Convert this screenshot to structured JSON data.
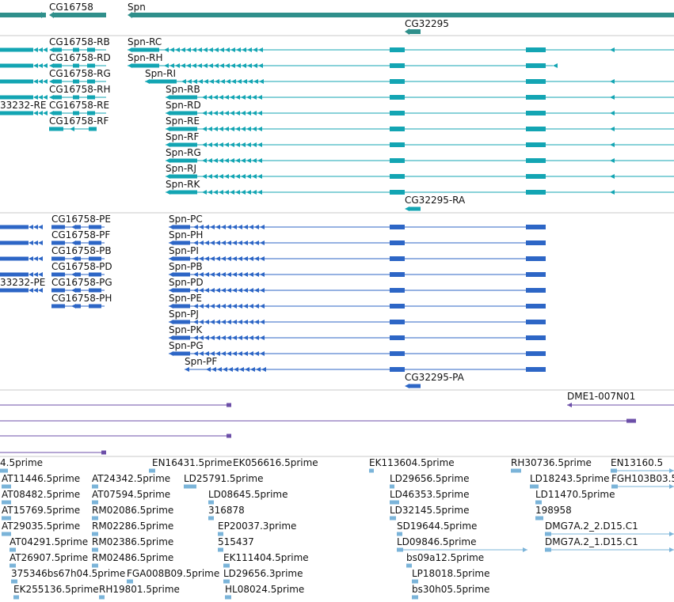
{
  "colors": {
    "gene": "#2f8f8b",
    "transcript": "#13a5b3",
    "protein": "#2d66c6",
    "cdna": "#6c4fa8",
    "est": "#7bb4d9"
  },
  "gene_track": {
    "labels": [
      "CG16758",
      "Spn",
      "CG32295"
    ]
  },
  "transcript_track": {
    "labels": [
      "CG16758-RB",
      "CG16758-RD",
      "CG16758-RG",
      "CG16758-RH",
      "CG16758-RE",
      "CG16758-RF",
      "Spn-RC",
      "Spn-RH",
      "Spn-RI",
      "Spn-RB",
      "Spn-RD",
      "Spn-RE",
      "Spn-RF",
      "Spn-RG",
      "Spn-RJ",
      "Spn-RK",
      "CG32295-RA",
      "33232-RE"
    ]
  },
  "protein_track": {
    "labels": [
      "CG16758-PE",
      "CG16758-PF",
      "CG16758-PB",
      "CG16758-PD",
      "CG16758-PG",
      "CG16758-PH",
      "Spn-PC",
      "Spn-PH",
      "Spn-PI",
      "Spn-PB",
      "Spn-PD",
      "Spn-PE",
      "Spn-PJ",
      "Spn-PK",
      "Spn-PG",
      "Spn-PF",
      "CG32295-PA",
      "33232-PE"
    ]
  },
  "cdna_track": {
    "labels": [
      "DME1-007N01"
    ]
  },
  "est_track": {
    "labels": [
      "4.5prime",
      "EN16431.5prime",
      "EK056616.5prime",
      "EK113604.5prime",
      "RH30736.5prime",
      "EN13160.5",
      "AT11446.5prime",
      "AT24342.5prime",
      "LD25791.5prime",
      "LD29656.5prime",
      "LD18243.5prime",
      "FGH103B03.5",
      "AT08482.5prime",
      "AT07594.5prime",
      "LD08645.5prime",
      "LD46353.5prime",
      "LD11470.5prime",
      "AT15769.5prime",
      "RM02086.5prime",
      "316878",
      "LD32145.5prime",
      "198958",
      "AT29035.5prime",
      "RM02286.5prime",
      "EP20037.3prime",
      "SD19644.5prime",
      "DMG7A.2_2.D15.C1",
      "AT04291.5prime",
      "RM02386.5prime",
      "515437",
      "LD09846.5prime",
      "DMG7A.2_1.D15.C1",
      "AT26907.5prime",
      "RM02486.5prime",
      "EK111404.5prime",
      "bs09a12.5prime",
      "375346bs67h04.5prime",
      "FGA008B09.5prime",
      "LD29656.3prime",
      "LP18018.5prime",
      "EK255136.5prime",
      "RH19801.5prime",
      "HL08024.5prime",
      "bs30h05.5prime"
    ]
  }
}
